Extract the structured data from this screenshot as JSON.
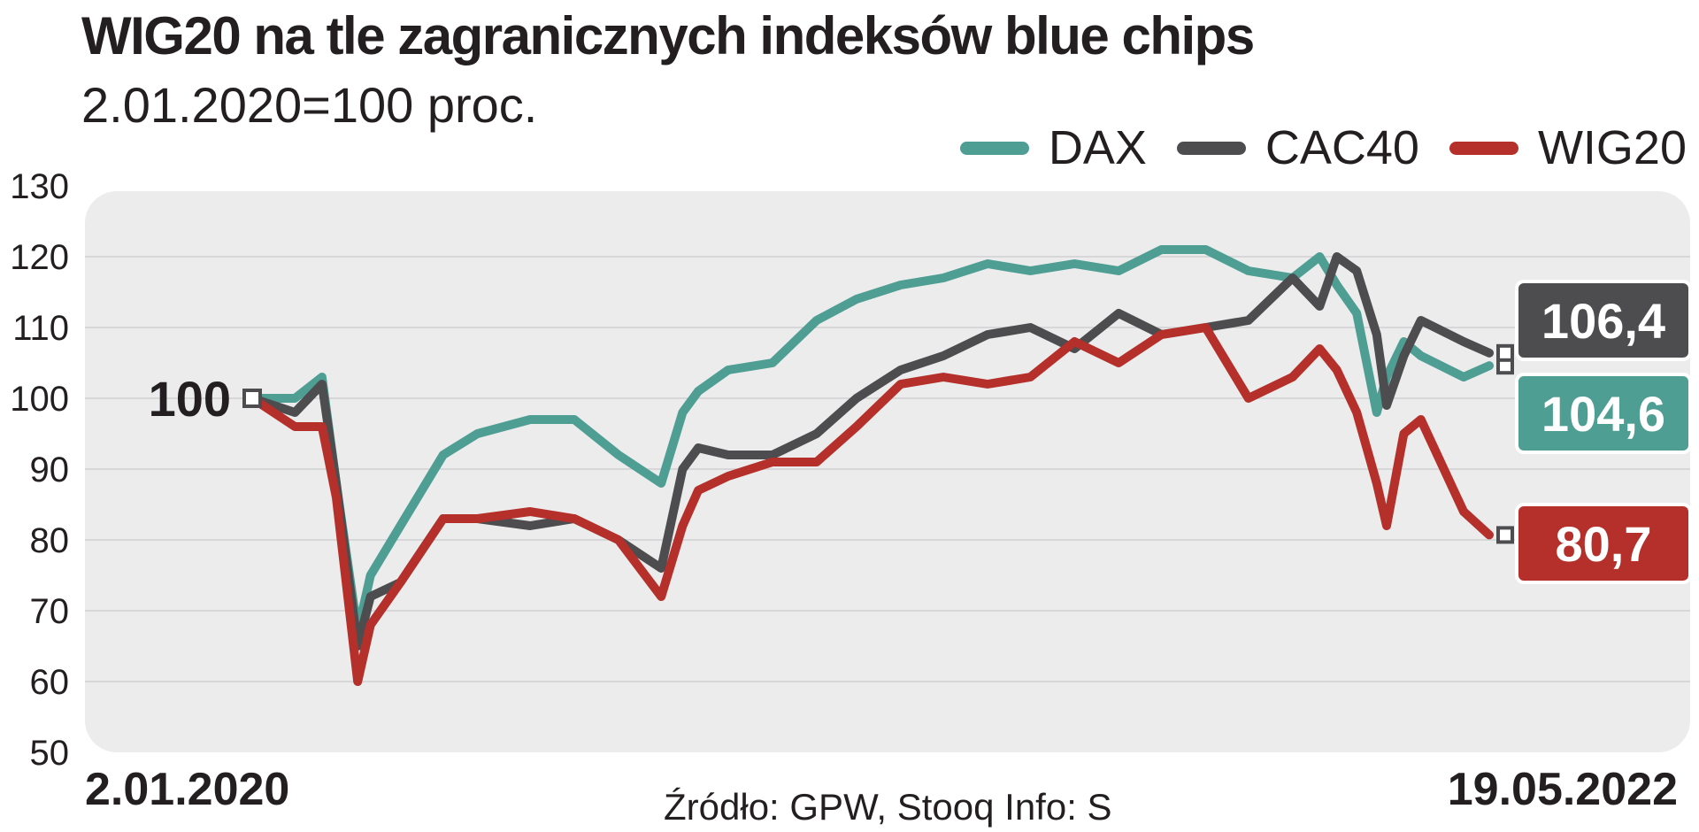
{
  "chart_data": {
    "type": "line",
    "title": "WIG20 na tle zagranicznych indeksów blue chips",
    "subtitle": "2.01.2020=100 proc.",
    "ylim": [
      50,
      130
    ],
    "y_ticks": [
      "130",
      "120",
      "110",
      "100",
      "90",
      "80",
      "70",
      "60",
      "50"
    ],
    "x_start_label": "2.01.2020",
    "x_end_label": "19.05.2022",
    "baseline_label": "100",
    "source": "Źródło: GPW, Stooq  Info: S",
    "legend_placement": "top-right",
    "grid": true,
    "x_dates": [
      "2020-01-02",
      "2020-02-01",
      "2020-02-20",
      "2020-03-01",
      "2020-03-16",
      "2020-03-25",
      "2020-04-15",
      "2020-05-15",
      "2020-06-08",
      "2020-07-15",
      "2020-08-15",
      "2020-09-15",
      "2020-10-15",
      "2020-10-30",
      "2020-11-10",
      "2020-12-01",
      "2021-01-01",
      "2021-02-01",
      "2021-03-01",
      "2021-04-01",
      "2021-05-01",
      "2021-06-01",
      "2021-07-01",
      "2021-08-01",
      "2021-09-01",
      "2021-10-01",
      "2021-11-01",
      "2021-12-01",
      "2022-01-01",
      "2022-01-20",
      "2022-02-01",
      "2022-02-15",
      "2022-03-01",
      "2022-03-08",
      "2022-03-20",
      "2022-04-01",
      "2022-05-01",
      "2022-05-19"
    ],
    "series": [
      {
        "name": "DAX",
        "color": "#4e9e93",
        "end_value": "104,6",
        "values": [
          100,
          100,
          103,
          88,
          67,
          75,
          82,
          92,
          95,
          97,
          97,
          92,
          88,
          98,
          101,
          104,
          105,
          111,
          114,
          116,
          117,
          119,
          118,
          119,
          118,
          121,
          121,
          118,
          117,
          120,
          116,
          112,
          98,
          103,
          108,
          106,
          103,
          104.6
        ]
      },
      {
        "name": "CAC40",
        "color": "#4d4d4f",
        "end_value": "106,4",
        "values": [
          100,
          98,
          102,
          88,
          65,
          72,
          74,
          83,
          83,
          82,
          83,
          80,
          76,
          90,
          93,
          92,
          92,
          95,
          100,
          104,
          106,
          109,
          110,
          107,
          112,
          109,
          110,
          111,
          117,
          113,
          120,
          118,
          109,
          99,
          106,
          111,
          108,
          106.4
        ]
      },
      {
        "name": "WIG20",
        "color": "#b5302a",
        "end_value": "80,7",
        "values": [
          100,
          96,
          96,
          86,
          60,
          68,
          74,
          83,
          83,
          84,
          83,
          80,
          72,
          82,
          87,
          89,
          91,
          91,
          96,
          102,
          103,
          102,
          103,
          108,
          105,
          109,
          110,
          100,
          103,
          107,
          104,
          98,
          88,
          82,
          95,
          97,
          84,
          80.7
        ]
      }
    ]
  }
}
